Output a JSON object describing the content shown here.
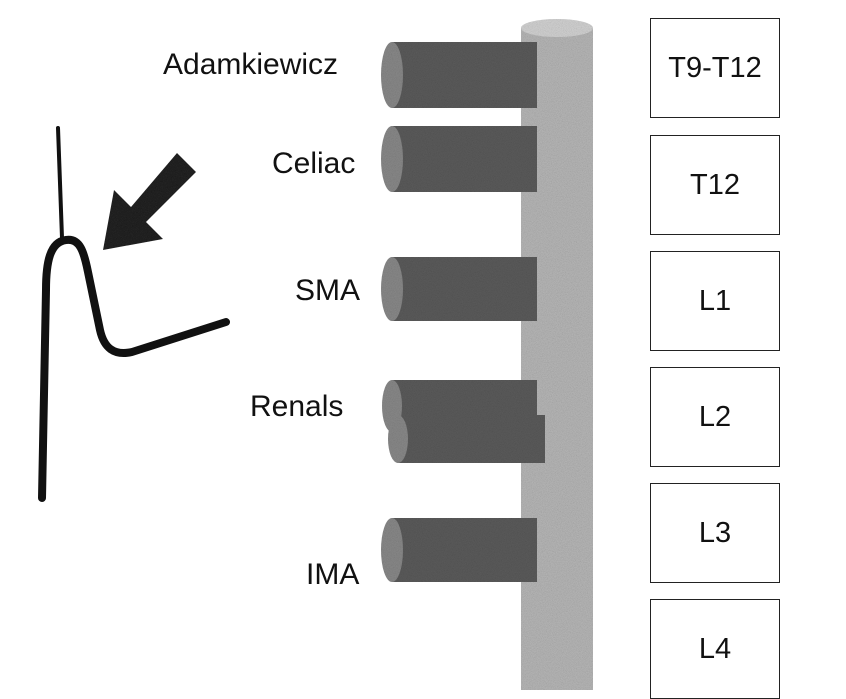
{
  "arteries": [
    {
      "id": "adamkiewicz",
      "label": "Adamkiewicz"
    },
    {
      "id": "celiac",
      "label": "Celiac"
    },
    {
      "id": "sma",
      "label": "SMA"
    },
    {
      "id": "renals",
      "label": "Renals"
    },
    {
      "id": "ima",
      "label": "IMA"
    }
  ],
  "levels": [
    "T9-T12",
    "T12",
    "L1",
    "L2",
    "L3",
    "L4"
  ],
  "colors": {
    "aorta": "#b8b8b8",
    "vessel": "#5c5c5c",
    "vessel_cap": "#8a8a8a",
    "ink": "#111111"
  },
  "icons": {
    "arrow": "arrow-pointing-icon",
    "catheter": "catheter-icon"
  }
}
